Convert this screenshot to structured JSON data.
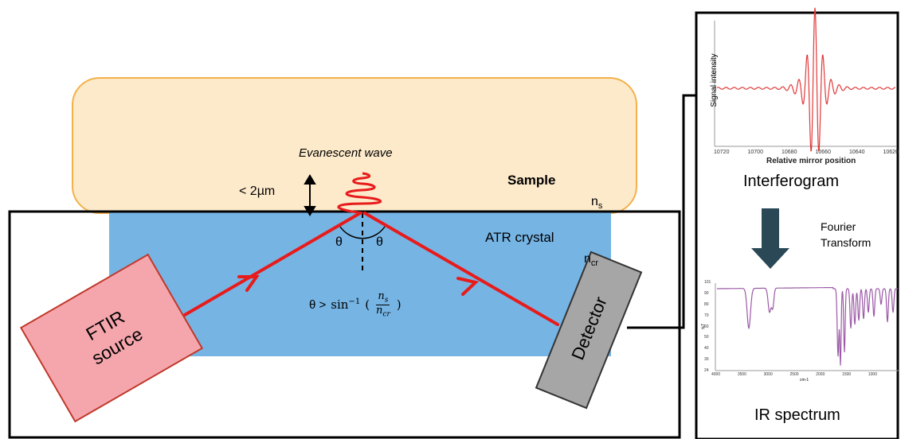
{
  "sample": {
    "label": "Sample",
    "index_base": "n",
    "index_sub": "s"
  },
  "crystal": {
    "label": "ATR crystal",
    "index_base": "n",
    "index_sub": "cr"
  },
  "evanescent_label": "Evanescent wave",
  "depth_label": "< 2µm",
  "angle_label": "θ",
  "condition": {
    "prefix": "θ >",
    "func": "sin",
    "exp": "−1",
    "num_base": "n",
    "num_sub": "s",
    "den_base": "n",
    "den_sub": "cr"
  },
  "source": {
    "line1": "FTIR",
    "line2": "source"
  },
  "detector_label": "Detector",
  "interferogram": {
    "title": "Interferogram",
    "ylabel": "Signal intensity",
    "xlabel": "Relative mirror position",
    "xticks": [
      "10720",
      "10700",
      "10680",
      "10660",
      "10640",
      "10620"
    ]
  },
  "transform_label": {
    "line1": "Fourier",
    "line2": "Transform"
  },
  "spectrum": {
    "title": "IR spectrum",
    "ylabel": "%T",
    "xlabel": "cm-1",
    "yticks": [
      "101",
      "90",
      "80",
      "70",
      "60",
      "50",
      "40",
      "30",
      "24"
    ],
    "xticks": [
      "4000",
      "3500",
      "3000",
      "2500",
      "2000",
      "1500",
      "1000"
    ]
  },
  "colors": {
    "sample_fill": "#fdeacb",
    "sample_stroke": "#f3b14a",
    "crystal_fill": "#76b4e4",
    "beam": "#e81b1b",
    "source_fill": "#f5a6ad",
    "detector_fill": "#a6a6a6",
    "arrow_fill": "#2a4856",
    "interferogram_line": "#e03a3a",
    "spectrum_line": "#9b5aa6"
  }
}
